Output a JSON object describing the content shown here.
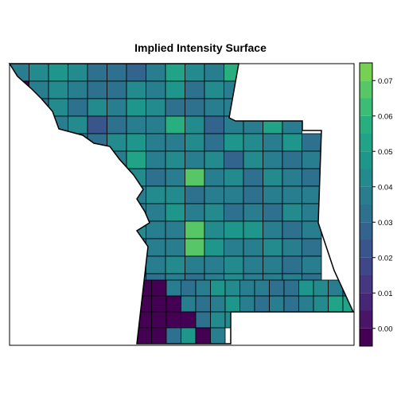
{
  "chart_data": {
    "type": "heatmap",
    "title": "Implied Intensity Surface",
    "xlabel": "",
    "ylabel": "",
    "legend_placement": "right",
    "colorbar": {
      "ticks": [
        0.0,
        0.01,
        0.02,
        0.03,
        0.04,
        0.05,
        0.06,
        0.07
      ],
      "tick_labels": [
        "0.00",
        "0.01",
        "0.02",
        "0.03",
        "0.04",
        "0.05",
        "0.06",
        "0.07"
      ],
      "range": [
        -0.005,
        0.075
      ],
      "breaks": [
        -0.005,
        0.0,
        0.005,
        0.01,
        0.015,
        0.02,
        0.025,
        0.03,
        0.035,
        0.04,
        0.045,
        0.05,
        0.055,
        0.06,
        0.065,
        0.07,
        0.075
      ],
      "colors": [
        "#440154",
        "#481568",
        "#482677",
        "#453781",
        "#3F4788",
        "#39558C",
        "#32648E",
        "#2D718E",
        "#287D8E",
        "#238A8D",
        "#1F968B",
        "#20A386",
        "#29AF7F",
        "#3CBC75",
        "#56C667",
        "#75D054"
      ]
    },
    "grid": {
      "columns": 16,
      "rows": 13,
      "values": [
        [
          0.038,
          0.043,
          0.047,
          0.041,
          0.032,
          0.034,
          0.029,
          0.036,
          0.051,
          0.043,
          0.04,
          0.056,
          null,
          null,
          null,
          null
        ],
        [
          -0.003,
          0.036,
          0.041,
          0.037,
          0.031,
          0.034,
          0.043,
          0.037,
          0.047,
          0.035,
          0.041,
          0.038,
          null,
          null,
          null,
          null
        ],
        [
          -0.004,
          0.034,
          0.042,
          0.033,
          0.041,
          0.036,
          0.047,
          0.041,
          0.035,
          0.034,
          0.04,
          0.036,
          null,
          null,
          null,
          null
        ],
        [
          null,
          0.039,
          0.036,
          0.041,
          0.025,
          0.034,
          0.038,
          0.037,
          0.059,
          0.043,
          0.03,
          0.037,
          0.039,
          0.051,
          0.038,
          null
        ],
        [
          null,
          -0.002,
          0.035,
          0.04,
          0.033,
          0.042,
          0.046,
          0.037,
          0.036,
          0.042,
          0.035,
          0.048,
          0.042,
          0.036,
          0.046,
          0.034
        ],
        [
          null,
          null,
          0.042,
          0.037,
          0.041,
          0.036,
          0.051,
          0.037,
          0.043,
          0.038,
          0.041,
          0.027,
          0.042,
          0.039,
          0.035,
          0.038
        ],
        [
          null,
          null,
          0.038,
          0.035,
          0.039,
          0.034,
          0.041,
          0.035,
          0.04,
          0.068,
          0.037,
          0.044,
          0.031,
          0.041,
          0.038,
          0.035
        ],
        [
          null,
          -0.004,
          0.039,
          0.042,
          0.037,
          0.04,
          0.039,
          0.043,
          0.044,
          0.031,
          0.04,
          0.038,
          0.034,
          0.04,
          0.036,
          0.04
        ],
        [
          null,
          null,
          0.036,
          0.04,
          0.038,
          0.041,
          0.037,
          0.039,
          0.046,
          0.039,
          0.042,
          0.033,
          0.037,
          0.035,
          0.041,
          0.038
        ],
        [
          null,
          null,
          null,
          0.037,
          0.039,
          0.036,
          0.042,
          0.04,
          0.038,
          0.066,
          0.043,
          0.048,
          0.05,
          0.038,
          0.035,
          0.037
        ],
        [
          null,
          null,
          null,
          0.036,
          0.035,
          0.032,
          0.031,
          0.037,
          0.036,
          0.07,
          0.046,
          0.039,
          0.036,
          0.041,
          0.037,
          0.033
        ],
        [
          null,
          null,
          null,
          null,
          0.035,
          0.031,
          0.03,
          0.039,
          0.041,
          0.04,
          0.039,
          0.041,
          0.036,
          0.037,
          0.034,
          0.037
        ],
        [
          null,
          null,
          null,
          null,
          0.036,
          0.034,
          0.031,
          0.032,
          0.037,
          0.033,
          0.037,
          0.045,
          0.04,
          0.036,
          0.038,
          0.035
        ]
      ],
      "lower_values": [
        [
          -0.004,
          -0.003,
          0.036,
          0.033,
          0.037,
          0.046,
          0.041,
          0.036,
          0.036,
          0.031,
          0.034,
          0.047,
          0.043,
          0.038,
          0.034,
          0.03
        ],
        [
          -0.004,
          -0.003,
          -0.004,
          0.037,
          0.031,
          0.038,
          0.047,
          0.036,
          0.031,
          0.037,
          0.035,
          0.04,
          0.044,
          0.051,
          0.054,
          0.046
        ],
        [
          -0.003,
          -0.003,
          -0.004,
          -0.004,
          0.033,
          0.045,
          0.045,
          0.032,
          null,
          null,
          null,
          null,
          null,
          null,
          null,
          null
        ],
        [
          -0.003,
          -0.004,
          0.034,
          0.047,
          -0.004,
          0.039,
          null,
          null,
          null,
          null,
          null,
          null,
          null,
          null,
          null,
          null
        ]
      ]
    }
  }
}
